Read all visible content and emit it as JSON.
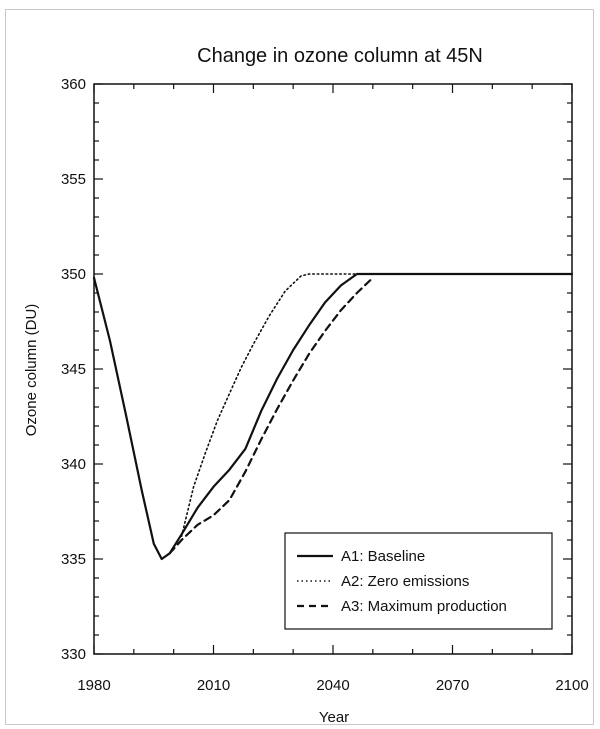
{
  "chart_data": {
    "type": "line",
    "title": "Change in ozone column at 45N",
    "xlabel": "Year",
    "ylabel": "Ozone column (DU)",
    "xlim": [
      1980,
      2100
    ],
    "ylim": [
      330,
      360
    ],
    "x_ticks": [
      1980,
      2010,
      2040,
      2070,
      2100
    ],
    "y_ticks": [
      330,
      335,
      340,
      345,
      350,
      355,
      360
    ],
    "grid": false,
    "legend_position": "bottom-right",
    "series": [
      {
        "name": "A1: Baseline",
        "style": "solid",
        "color": "#111111",
        "x": [
          1980,
          1984,
          1988,
          1992,
          1995,
          1997,
          1999,
          2002,
          2006,
          2010,
          2014,
          2018,
          2022,
          2026,
          2030,
          2034,
          2038,
          2042,
          2046,
          2048,
          2060,
          2080,
          2100
        ],
        "y": [
          349.8,
          346.5,
          342.6,
          338.6,
          335.8,
          335.0,
          335.3,
          336.3,
          337.7,
          338.8,
          339.7,
          340.8,
          342.8,
          344.5,
          346.0,
          347.3,
          348.5,
          349.4,
          350.0,
          350.0,
          350.0,
          350.0,
          350.0
        ]
      },
      {
        "name": "A2: Zero emissions",
        "style": "dotted",
        "color": "#111111",
        "x": [
          2002,
          2005,
          2008,
          2011,
          2014,
          2017,
          2020,
          2024,
          2028,
          2032,
          2034,
          2040,
          2049
        ],
        "y": [
          336.2,
          338.8,
          340.6,
          342.3,
          343.7,
          345.1,
          346.3,
          347.8,
          349.1,
          349.9,
          350.0,
          350.0,
          350.0
        ]
      },
      {
        "name": "A3: Maximum production",
        "style": "dashed",
        "color": "#111111",
        "x": [
          1999,
          2002,
          2006,
          2010,
          2014,
          2018,
          2022,
          2026,
          2030,
          2034,
          2038,
          2042,
          2046,
          2050
        ],
        "y": [
          335.3,
          336.0,
          336.8,
          337.3,
          338.1,
          339.6,
          341.3,
          342.9,
          344.4,
          345.8,
          347.0,
          348.1,
          349.0,
          349.8
        ]
      }
    ]
  }
}
